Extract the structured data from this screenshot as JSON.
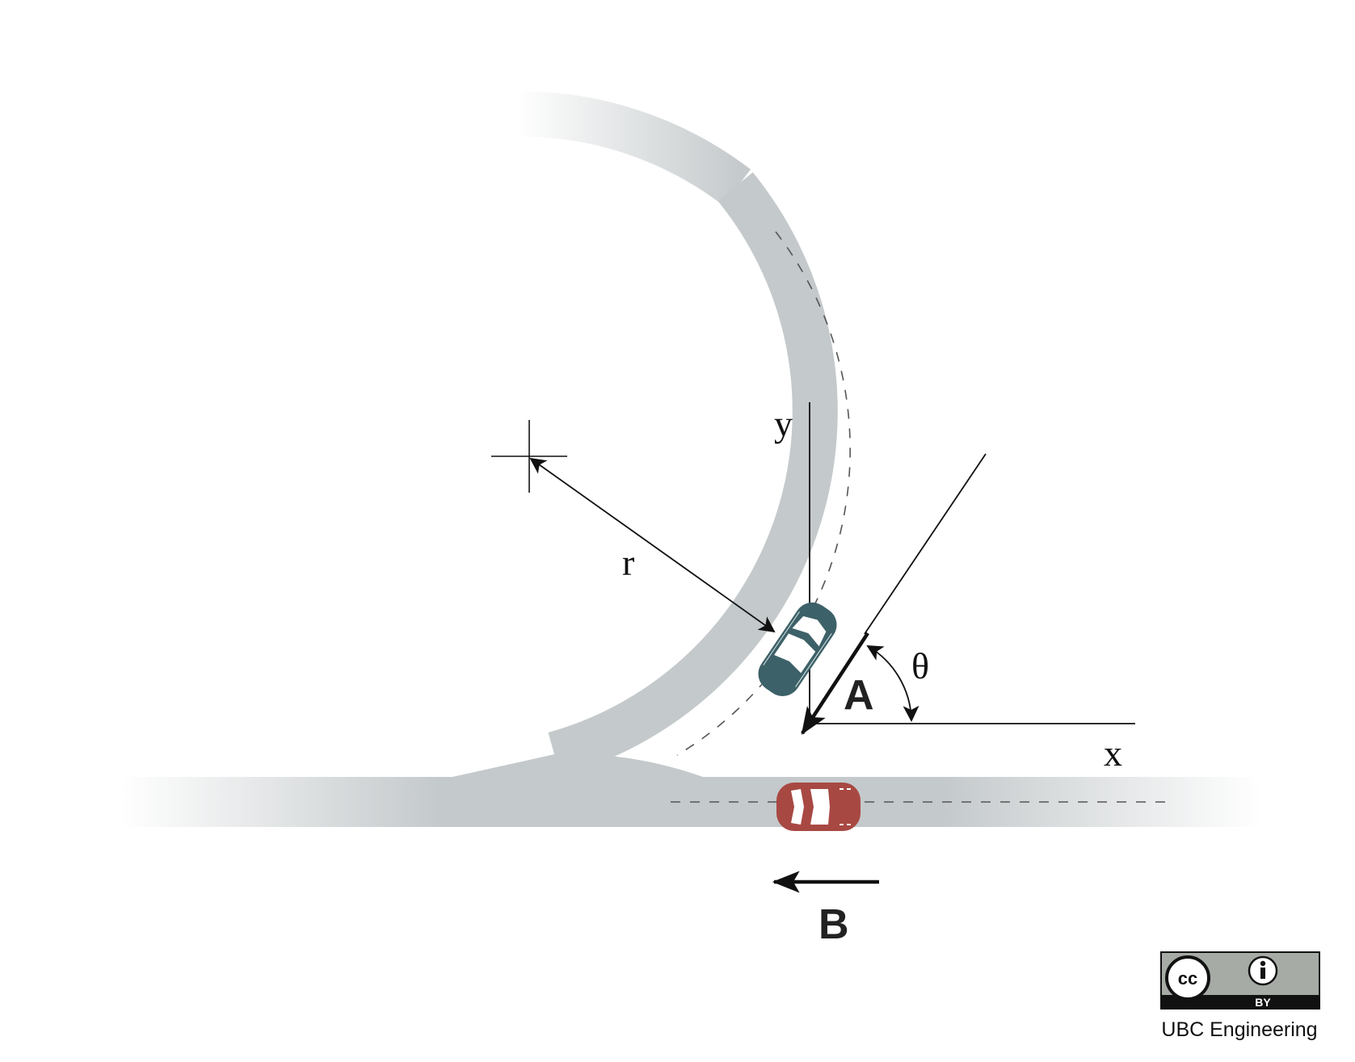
{
  "labels": {
    "r": "r",
    "y": "y",
    "x": "x",
    "theta": "θ",
    "A": "A",
    "B": "B"
  },
  "license": {
    "cc": "cc",
    "by": "BY",
    "credit": "UBC Engineering"
  },
  "colors": {
    "road": "#c4c9cb",
    "car_a": "#3d6168",
    "car_b": "#a84843",
    "lines": "#111111",
    "badge_gray": "#a6aba5"
  }
}
